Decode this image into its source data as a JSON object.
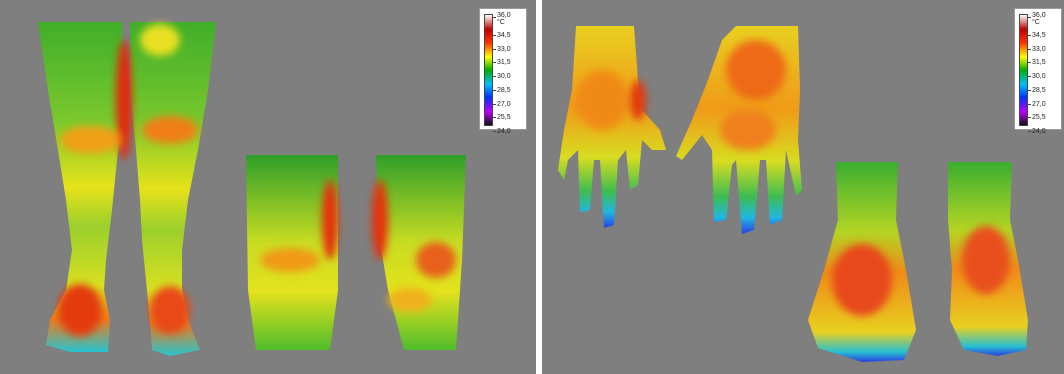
{
  "scale_left": {
    "unit": "°C",
    "labels": [
      "36,0",
      "34,5",
      "33,0",
      "31,5",
      "30,0",
      "28,5",
      "27,0",
      "25,5",
      "24,0"
    ],
    "colors": [
      "#ffffff",
      "#c00000",
      "#ff3000",
      "#ffff00",
      "#00b000",
      "#00c0ff",
      "#0030ff",
      "#c000ff",
      "#101010"
    ]
  },
  "scale_right": {
    "unit": "°C",
    "labels": [
      "36,0",
      "34,5",
      "33,0",
      "31,5",
      "30,0",
      "28,5",
      "27,0",
      "25,5",
      "24,0"
    ],
    "colors": [
      "#ffffff",
      "#c00000",
      "#ff3000",
      "#ffff00",
      "#00b000",
      "#00c0ff",
      "#0030ff",
      "#c000ff",
      "#101010"
    ]
  },
  "background_color": "#7f7f7f"
}
